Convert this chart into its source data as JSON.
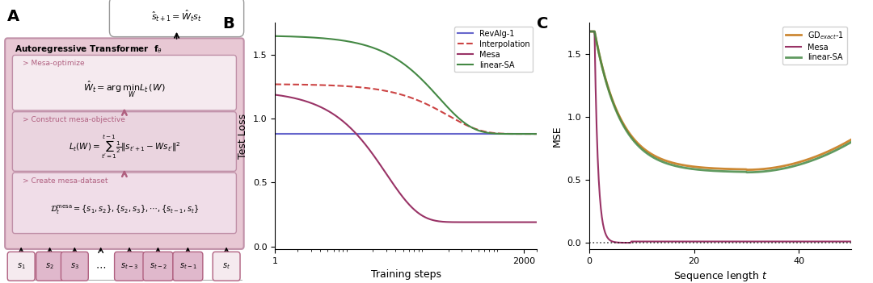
{
  "panel_A": {
    "label": "A",
    "outer_box_color": "#c090a8",
    "outer_box_facecolor": "#e8c8d4",
    "box1_facecolor": "#f5eaef",
    "box2_facecolor": "#ead4df",
    "box3_facecolor": "#f0dde8",
    "token_facecolor_shaded": "#e0b8cc",
    "token_facecolor_light": "#f5eaef",
    "arrow_color": "#b06080",
    "formula_top": "$\\hat{s}_{t+1} = \\hat{W}_t s_t$"
  },
  "panel_B": {
    "label": "B",
    "xlabel": "Training steps",
    "ylabel": "Test Loss",
    "xticks": [
      1,
      2000
    ],
    "yticks": [
      0.0,
      0.5,
      1.0,
      1.5
    ],
    "xlim": [
      1,
      3000
    ],
    "ylim": [
      -0.02,
      1.75
    ],
    "lines": [
      {
        "name": "RevAlg-1",
        "color": "#6666cc",
        "style": "-",
        "lw": 1.5
      },
      {
        "name": "Interpolation",
        "color": "#cc4444",
        "style": "--",
        "lw": 1.5
      },
      {
        "name": "Mesa",
        "color": "#993366",
        "style": "-",
        "lw": 1.5
      },
      {
        "name": "linear-SA",
        "color": "#448844",
        "style": "-",
        "lw": 1.5
      }
    ]
  },
  "panel_C": {
    "label": "C",
    "xlabel": "Sequence length $t$",
    "ylabel": "MSE",
    "xticks": [
      0,
      20,
      40
    ],
    "yticks": [
      0.0,
      0.5,
      1.0,
      1.5
    ],
    "xlim": [
      0,
      50
    ],
    "ylim": [
      -0.05,
      1.75
    ],
    "lines": [
      {
        "name": "GD_exact-1",
        "color": "#cc8833",
        "style": "-",
        "lw": 2.0
      },
      {
        "name": "Mesa",
        "color": "#993366",
        "style": "-",
        "lw": 1.5
      },
      {
        "name": "linear-SA",
        "color": "#448844",
        "style": "-",
        "lw": 2.0
      }
    ]
  }
}
